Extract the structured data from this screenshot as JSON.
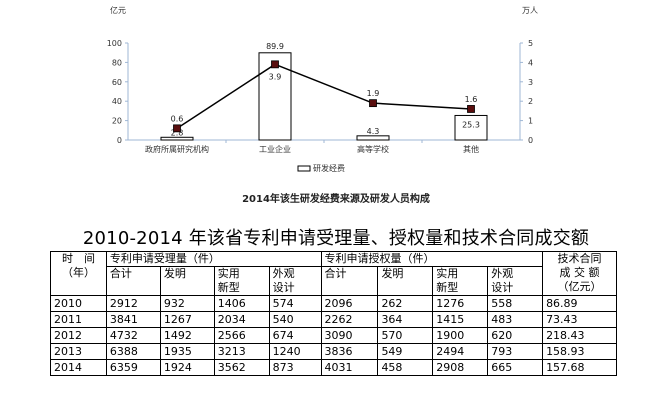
{
  "chart_data": {
    "type": "bar",
    "title": "2014年该生研发经费来源及研发人员构成",
    "y_left_label": "亿元",
    "y_right_label": "万人",
    "y_left_ticks": [
      "0",
      "20",
      "40",
      "60",
      "80",
      "100"
    ],
    "y_right_ticks": [
      "0",
      "1",
      "2",
      "3",
      "4",
      "5"
    ],
    "y_left_range": [
      0,
      100
    ],
    "y_right_range": [
      0,
      5
    ],
    "categories": [
      "政府所属研究机构",
      "工业企业",
      "高等学校",
      "其他"
    ],
    "series": [
      {
        "name": "研发经费",
        "type": "bar",
        "axis": "left",
        "values": [
          2.8,
          89.9,
          4.3,
          25.3
        ],
        "labels": [
          "2.8",
          "89.9",
          "4.3",
          "25.3"
        ]
      },
      {
        "type": "line",
        "axis": "right",
        "values": [
          0.6,
          3.9,
          1.9,
          1.6
        ],
        "labels": [
          "0.6",
          "3.9",
          "1.9",
          "1.6"
        ]
      }
    ],
    "legend_position": "bottom",
    "grid": false
  },
  "table": {
    "title": "2010-2014 年该省专利申请受理量、授权量和技术合同成交额",
    "header": {
      "time_label": "时　间",
      "time_unit": "（年）",
      "group1": "专利申请受理量（件）",
      "group2": "专利申请授权量（件）",
      "contract_line1": "技术合同",
      "contract_line2": "成 交 额",
      "contract_line3": "（亿元）",
      "sub": {
        "total": "合计",
        "invention": "发明",
        "utility_1": "实用",
        "utility_2": "新型",
        "design_1": "外观",
        "design_2": "设计"
      }
    },
    "rows": [
      {
        "year": "2010",
        "app_total": "2912",
        "app_inv": "932",
        "app_util": "1406",
        "app_design": "574",
        "grant_total": "2096",
        "grant_inv": "262",
        "grant_util": "1276",
        "grant_design": "558",
        "contract": "86.89"
      },
      {
        "year": "2011",
        "app_total": "3841",
        "app_inv": "1267",
        "app_util": "2034",
        "app_design": "540",
        "grant_total": "2262",
        "grant_inv": "364",
        "grant_util": "1415",
        "grant_design": "483",
        "contract": "73.43"
      },
      {
        "year": "2012",
        "app_total": "4732",
        "app_inv": "1492",
        "app_util": "2566",
        "app_design": "674",
        "grant_total": "3090",
        "grant_inv": "570",
        "grant_util": "1900",
        "grant_design": "620",
        "contract": "218.43"
      },
      {
        "year": "2013",
        "app_total": "6388",
        "app_inv": "1935",
        "app_util": "3213",
        "app_design": "1240",
        "grant_total": "3836",
        "grant_inv": "549",
        "grant_util": "2494",
        "grant_design": "793",
        "contract": "158.93"
      },
      {
        "year": "2014",
        "app_total": "6359",
        "app_inv": "1924",
        "app_util": "3562",
        "app_design": "873",
        "grant_total": "4031",
        "grant_inv": "458",
        "grant_util": "2908",
        "grant_design": "665",
        "contract": "157.68"
      }
    ]
  }
}
